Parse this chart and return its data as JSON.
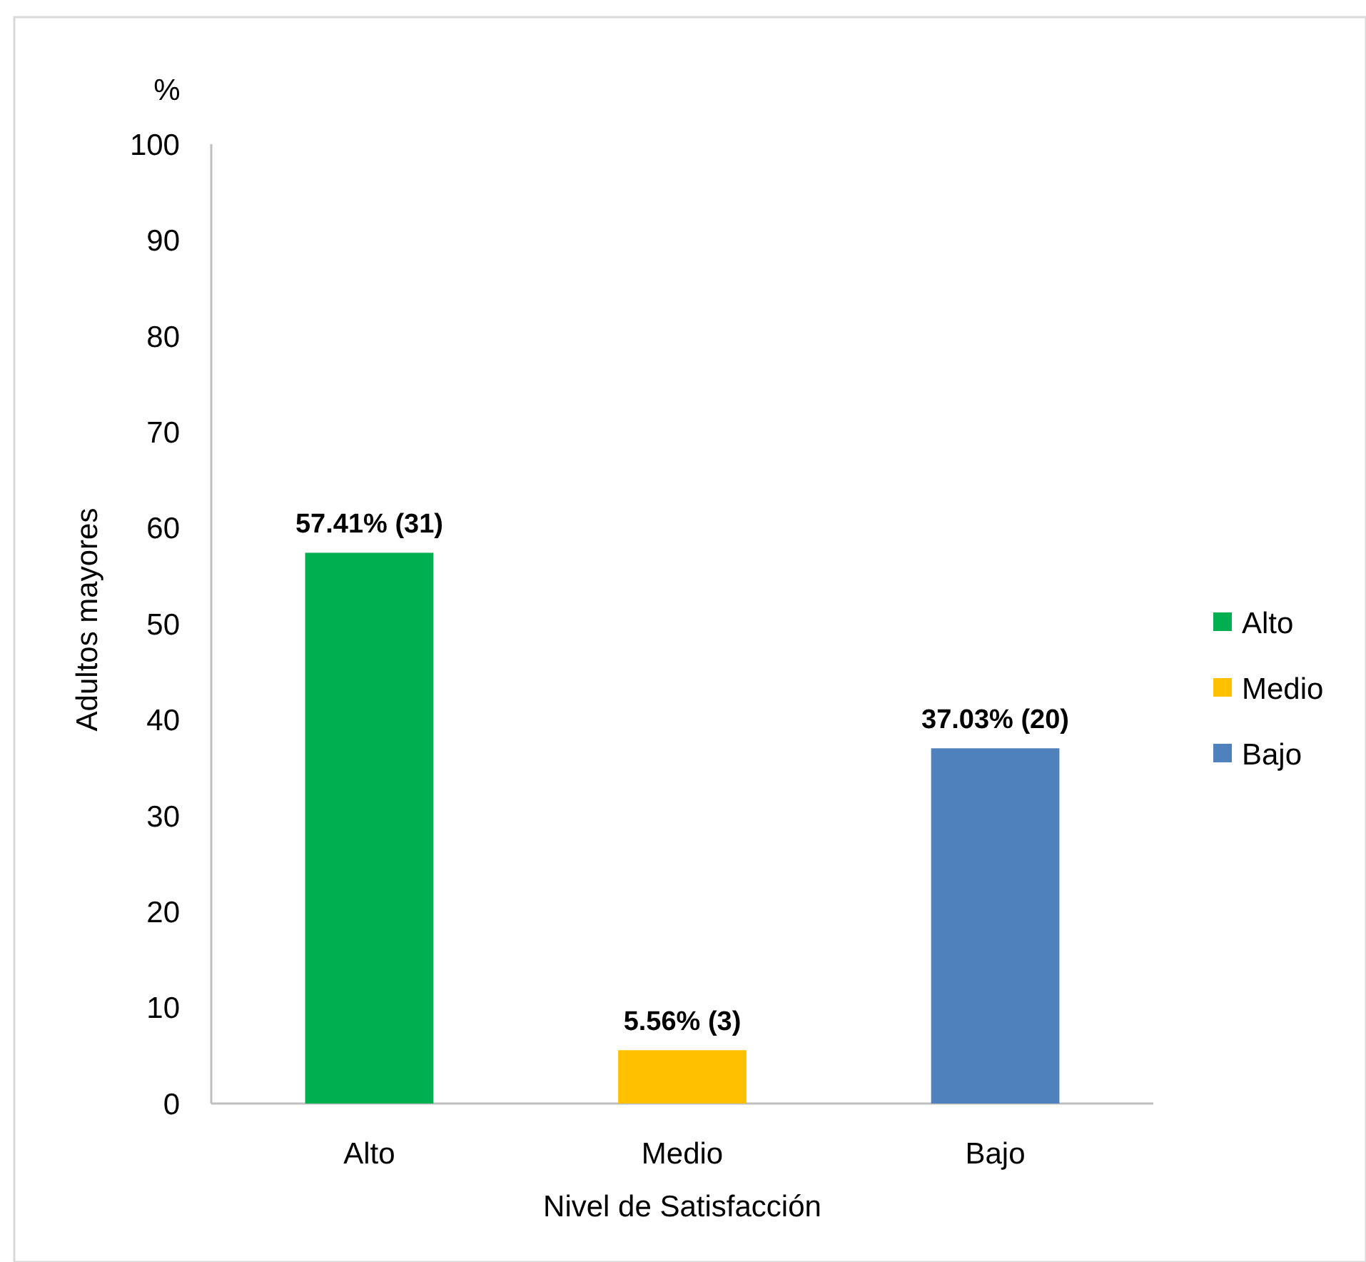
{
  "chart_data": {
    "type": "bar",
    "categories": [
      "Alto",
      "Medio",
      "Bajo"
    ],
    "series": [
      {
        "name": "Alto",
        "color": "#00b050",
        "values": [
          57.41,
          null,
          null
        ],
        "value_labels": [
          "57.41% (31)",
          null,
          null
        ]
      },
      {
        "name": "Medio",
        "color": "#ffc000",
        "values": [
          null,
          5.56,
          null
        ],
        "value_labels": [
          null,
          "5.56% (3)",
          null
        ]
      },
      {
        "name": "Bajo",
        "color": "#4f81bd",
        "values": [
          null,
          null,
          37.03
        ],
        "value_labels": [
          null,
          null,
          "37.03% (20)"
        ]
      }
    ],
    "xlabel": "Nivel de Satisfacción",
    "ylabel": "Adultos mayores",
    "annotations": [
      "%"
    ],
    "ylim": [
      0,
      100
    ],
    "yticks": [
      0,
      10,
      20,
      30,
      40,
      50,
      60,
      70,
      80,
      90,
      100
    ],
    "legend": "right"
  }
}
